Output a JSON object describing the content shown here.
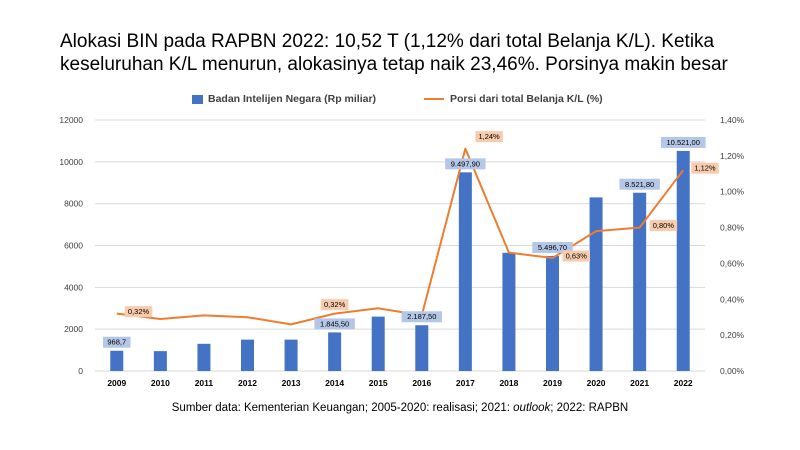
{
  "title": "Alokasi BIN pada RAPBN 2022: 10,52 T (1,12% dari total Belanja K/L). Ketika keseluruhan K/L menurun, alokasinya tetap naik 23,46%. Porsinya makin besar",
  "source_prefix": "Sumber data: Kementerian Keuangan; 2005-2020: realisasi; 2021: ",
  "source_italic": "outlook",
  "source_suffix": "; 2022: RAPBN",
  "colors": {
    "bar": "#4472C4",
    "line": "#ED7D31",
    "bar_label_bg": "#B4C7E7",
    "line_label_bg": "#F8CBAD",
    "grid": "#D9D9D9"
  },
  "chart_data": {
    "type": "bar+line",
    "categories": [
      "2009",
      "2010",
      "2011",
      "2012",
      "2013",
      "2014",
      "2015",
      "2016",
      "2017",
      "2018",
      "2019",
      "2020",
      "2021",
      "2022"
    ],
    "series": [
      {
        "name": "Badan Intelijen Negara (Rp miliar)",
        "type": "bar",
        "axis": "left",
        "values": [
          968.7,
          950,
          1300,
          1500,
          1500,
          1845.5,
          2600,
          2187.5,
          9497.9,
          5650,
          5496.7,
          8300,
          8521.8,
          10521.0
        ],
        "data_labels": [
          "968,7",
          "",
          "",
          "",
          "",
          "1.845,50",
          "",
          "2.187,50",
          "9.497,90",
          "",
          "5.496,70",
          "",
          "8.521,80",
          "10.521,00"
        ]
      },
      {
        "name": "Porsi dari total Belanja K/L (%)",
        "type": "line",
        "axis": "right",
        "values": [
          0.32,
          0.29,
          0.31,
          0.3,
          0.26,
          0.32,
          0.35,
          0.31,
          1.24,
          0.66,
          0.63,
          0.78,
          0.8,
          1.12
        ],
        "data_labels": [
          "0,32%",
          "",
          "",
          "",
          "",
          "0,32%",
          "",
          "",
          "1,24%",
          "",
          "0,63%",
          "",
          "0,80%",
          "1,12%"
        ]
      }
    ],
    "y_left": {
      "min": 0,
      "max": 12000,
      "ticks": [
        "0",
        "2000",
        "4000",
        "6000",
        "8000",
        "10000",
        "12000"
      ]
    },
    "y_right": {
      "min": 0,
      "max": 1.4,
      "ticks": [
        "0,00%",
        "0,20%",
        "0,40%",
        "0,60%",
        "0,80%",
        "1,00%",
        "1,20%",
        "1,40%"
      ]
    },
    "grid": true,
    "legend_position": "top"
  }
}
